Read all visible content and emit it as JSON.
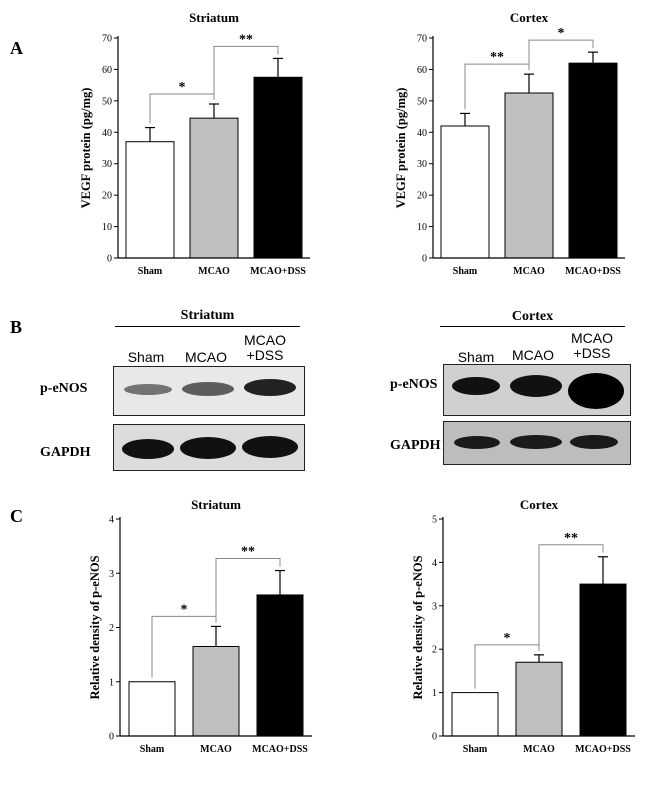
{
  "panels": {
    "A": "A",
    "B": "B",
    "C": "C"
  },
  "chart_data": [
    {
      "type": "bar",
      "title": "Striatum",
      "ylabel": "VEGF protein (pg/mg)",
      "categories": [
        "Sham",
        "MCAO",
        "MCAO+DSS"
      ],
      "values": [
        37,
        44.5,
        57.5
      ],
      "errors": [
        4.5,
        4.5,
        6
      ],
      "ylim": [
        0,
        70
      ],
      "yticks": [
        0,
        10,
        20,
        30,
        40,
        50,
        60,
        70
      ],
      "significance": [
        {
          "from": 0,
          "to": 1,
          "label": "*"
        },
        {
          "from": 1,
          "to": 2,
          "label": "**"
        }
      ]
    },
    {
      "type": "bar",
      "title": "Cortex",
      "ylabel": "VEGF protein (pg/mg)",
      "categories": [
        "Sham",
        "MCAO",
        "MCAO+DSS"
      ],
      "values": [
        42,
        52.5,
        62
      ],
      "errors": [
        4,
        6,
        3.5
      ],
      "ylim": [
        0,
        70
      ],
      "yticks": [
        0,
        10,
        20,
        30,
        40,
        50,
        60,
        70
      ],
      "significance": [
        {
          "from": 0,
          "to": 1,
          "label": "**"
        },
        {
          "from": 1,
          "to": 2,
          "label": "*"
        }
      ]
    },
    {
      "type": "bar",
      "title": "Striatum",
      "ylabel": "Relative density of p-eNOS",
      "categories": [
        "Sham",
        "MCAO",
        "MCAO+DSS"
      ],
      "values": [
        1.0,
        1.65,
        2.6
      ],
      "errors": [
        0,
        0.37,
        0.45
      ],
      "ylim": [
        0,
        4
      ],
      "yticks": [
        0,
        1,
        2,
        3,
        4
      ],
      "significance": [
        {
          "from": 0,
          "to": 1,
          "label": "*"
        },
        {
          "from": 1,
          "to": 2,
          "label": "**"
        }
      ]
    },
    {
      "type": "bar",
      "title": "Cortex",
      "ylabel": "Relative density of p-eNOS",
      "categories": [
        "Sham",
        "MCAO",
        "MCAO+DSS"
      ],
      "values": [
        1.0,
        1.7,
        3.5
      ],
      "errors": [
        0,
        0.17,
        0.63
      ],
      "ylim": [
        0,
        5
      ],
      "yticks": [
        0,
        1,
        2,
        3,
        4,
        5
      ],
      "significance": [
        {
          "from": 0,
          "to": 1,
          "label": "*"
        },
        {
          "from": 1,
          "to": 2,
          "label": "**"
        }
      ]
    }
  ],
  "bar_colors": [
    "#ffffff",
    "#c0c0c0",
    "#000000"
  ],
  "blots": {
    "striatum": {
      "title": "Striatum",
      "lanes": [
        "Sham",
        "MCAO",
        "MCAO\n+DSS"
      ],
      "rows": [
        "p-eNOS",
        "GAPDH"
      ],
      "p_enos_intensity": [
        0.55,
        0.65,
        0.85
      ],
      "gapdh_intensity": [
        0.95,
        0.95,
        0.95
      ]
    },
    "cortex": {
      "title": "Cortex",
      "lanes": [
        "Sham",
        "MCAO",
        "MCAO\n+DSS"
      ],
      "rows": [
        "p-eNOS",
        "GAPDH"
      ],
      "p_enos_intensity": [
        0.8,
        0.9,
        1.0
      ],
      "gapdh_intensity": [
        0.9,
        0.9,
        0.9
      ]
    }
  }
}
